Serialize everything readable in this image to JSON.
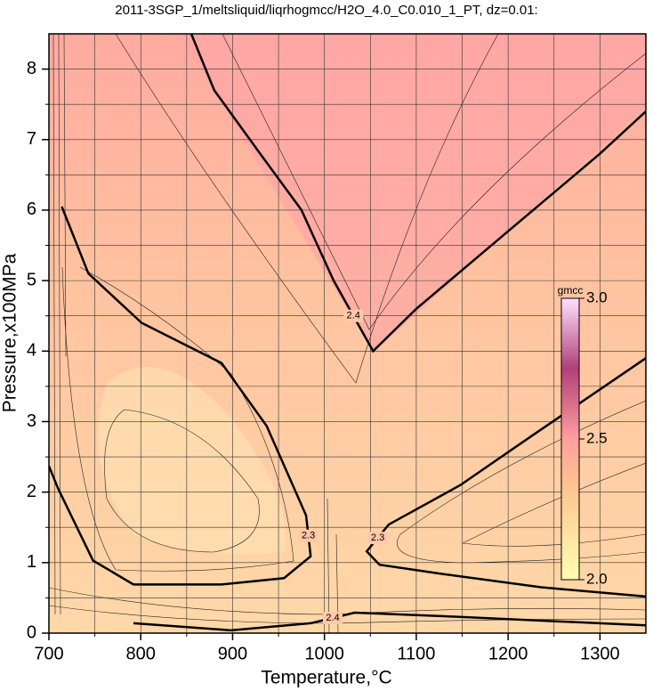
{
  "chart_data": {
    "type": "contour",
    "title": "2011-3SGP_1/meltsliquid/liqrhogmcc/H2O_4.0_C0.010_1_PT, dz=0.01:",
    "xlabel": "Temperature,°C",
    "ylabel": "Pressure,x100MPa",
    "xlim": [
      700,
      1350
    ],
    "ylim": [
      0,
      8.5
    ],
    "xticks": [
      700,
      800,
      900,
      1000,
      1100,
      1200,
      1300
    ],
    "yticks": [
      0,
      1,
      2,
      3,
      4,
      5,
      6,
      7,
      8
    ],
    "xminorticks": [
      750,
      850,
      950,
      1050,
      1150,
      1250
    ],
    "yminorticks": [
      0.5,
      1.5,
      2.5,
      3.5,
      4.5,
      5.5,
      6.5,
      7.5
    ],
    "grid": true,
    "contours": [
      {
        "level": 2.4,
        "x": [
          855,
          880,
          930,
          975,
          1010,
          1053,
          1100,
          1200,
          1300,
          1350
        ],
        "y": [
          8.5,
          7.7,
          6.8,
          6.0,
          5.0,
          4.0,
          4.6,
          5.7,
          6.8,
          7.4
        ]
      },
      {
        "level": 2.3,
        "x": [
          714,
          743,
          801,
          888,
          937,
          980,
          985,
          956,
          888,
          792,
          748,
          710,
          700
        ],
        "y": [
          6.05,
          5.1,
          4.4,
          3.83,
          2.94,
          1.67,
          1.09,
          0.78,
          0.69,
          0.69,
          1.03,
          2.05,
          2.37
        ]
      },
      {
        "level": 2.3,
        "x": [
          1350,
          1226,
          1148,
          1070,
          1046,
          1060,
          1128,
          1236,
          1350
        ],
        "y": [
          3.9,
          2.8,
          2.1,
          1.54,
          1.16,
          0.97,
          0.84,
          0.65,
          0.52
        ]
      },
      {
        "level": 2.4,
        "x": [
          792,
          898,
          985,
          1033,
          1130,
          1350
        ],
        "y": [
          0.14,
          0.04,
          0.14,
          0.29,
          0.24,
          0.11
        ]
      }
    ],
    "colorbar": {
      "label": "gmcc",
      "lim": [
        2,
        3
      ],
      "ticks": [
        {
          "value": 2,
          "label": "2.0"
        },
        {
          "value": 2.5,
          "label": "2.5"
        },
        {
          "value": 3,
          "label": "3.0"
        }
      ]
    }
  }
}
